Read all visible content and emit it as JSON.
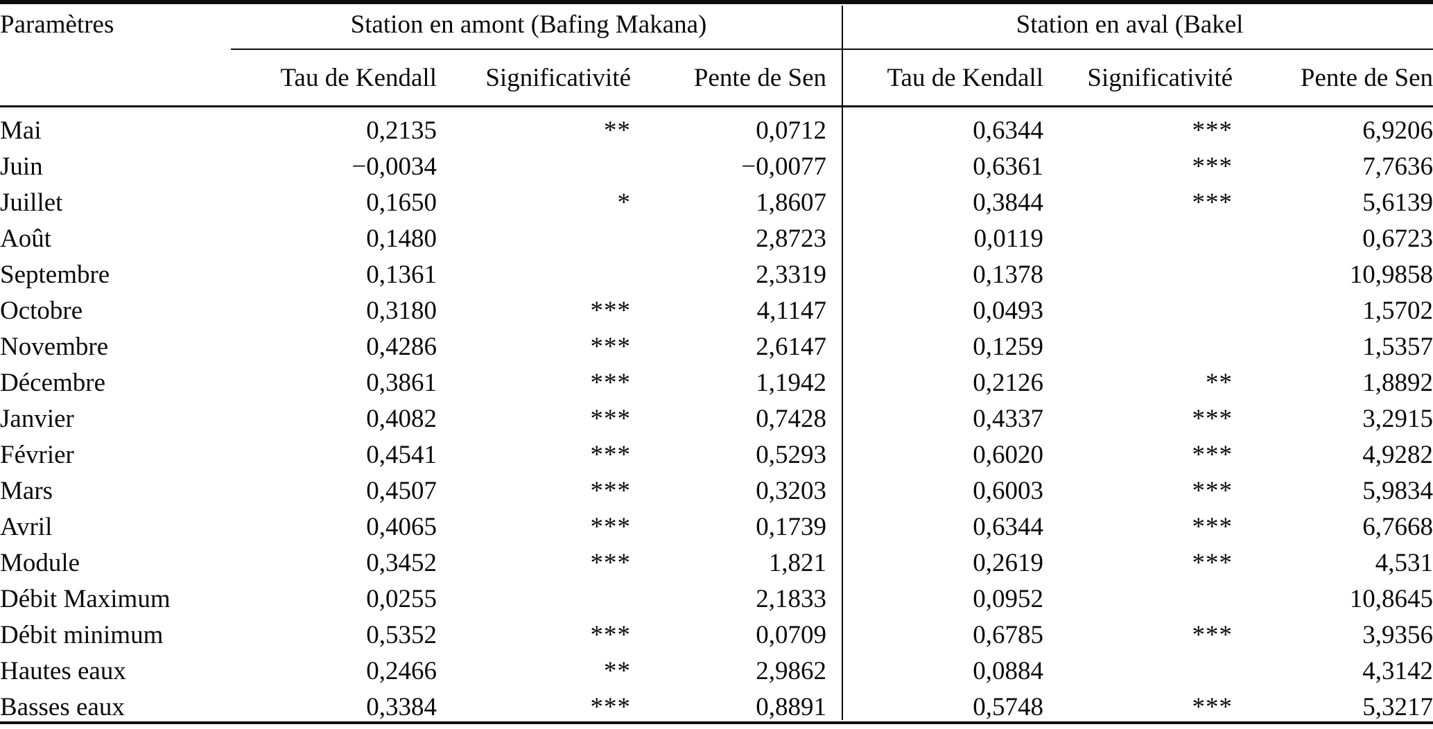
{
  "table": {
    "param_header": "Paramètres",
    "groups": {
      "amont": "Station en amont (Bafing Makana)",
      "aval": "Station en aval (Bakel"
    },
    "subheaders": [
      "Tau de Kendall",
      "Significativité",
      "Pente de Sen",
      "Tau de Kendall",
      "Significativité",
      "Pente de Sen"
    ],
    "rows": [
      {
        "param": "Mai",
        "cells": [
          "0,2135",
          "**",
          "0,0712",
          "0,6344",
          "***",
          "6,9206"
        ]
      },
      {
        "param": "Juin",
        "cells": [
          "−0,0034",
          "",
          "−0,0077",
          "0,6361",
          "***",
          "7,7636"
        ]
      },
      {
        "param": "Juillet",
        "cells": [
          "0,1650",
          "*",
          "1,8607",
          "0,3844",
          "***",
          "5,6139"
        ]
      },
      {
        "param": "Août",
        "cells": [
          "0,1480",
          "",
          "2,8723",
          "0,0119",
          "",
          "0,6723"
        ]
      },
      {
        "param": "Septembre",
        "cells": [
          "0,1361",
          "",
          "2,3319",
          "0,1378",
          "",
          "10,9858"
        ]
      },
      {
        "param": "Octobre",
        "cells": [
          "0,3180",
          "***",
          "4,1147",
          "0,0493",
          "",
          "1,5702"
        ]
      },
      {
        "param": "Novembre",
        "cells": [
          "0,4286",
          "***",
          "2,6147",
          "0,1259",
          "",
          "1,5357"
        ]
      },
      {
        "param": "Décembre",
        "cells": [
          "0,3861",
          "***",
          "1,1942",
          "0,2126",
          "**",
          "1,8892"
        ]
      },
      {
        "param": "Janvier",
        "cells": [
          "0,4082",
          "***",
          "0,7428",
          "0,4337",
          "***",
          "3,2915"
        ]
      },
      {
        "param": "Février",
        "cells": [
          "0,4541",
          "***",
          "0,5293",
          "0,6020",
          "***",
          "4,9282"
        ]
      },
      {
        "param": "Mars",
        "cells": [
          "0,4507",
          "***",
          "0,3203",
          "0,6003",
          "***",
          "5,9834"
        ]
      },
      {
        "param": "Avril",
        "cells": [
          "0,4065",
          "***",
          "0,1739",
          "0,6344",
          "***",
          "6,7668"
        ]
      },
      {
        "param": "Module",
        "cells": [
          "0,3452",
          "***",
          "1,821",
          "0,2619",
          "***",
          "4,531"
        ]
      },
      {
        "param": "Débit Maximum",
        "cells": [
          "0,0255",
          "",
          "2,1833",
          "0,0952",
          "",
          "10,8645"
        ]
      },
      {
        "param": "Débit minimum",
        "cells": [
          "0,5352",
          "***",
          "0,0709",
          "0,6785",
          "***",
          "3,9356"
        ]
      },
      {
        "param": "Hautes eaux",
        "cells": [
          "0,2466",
          "**",
          "2,9862",
          "0,0884",
          "",
          "4,3142"
        ]
      },
      {
        "param": "Basses eaux",
        "cells": [
          "0,3384",
          "***",
          "0,8891",
          "0,5748",
          "***",
          "5,3217"
        ]
      }
    ]
  }
}
